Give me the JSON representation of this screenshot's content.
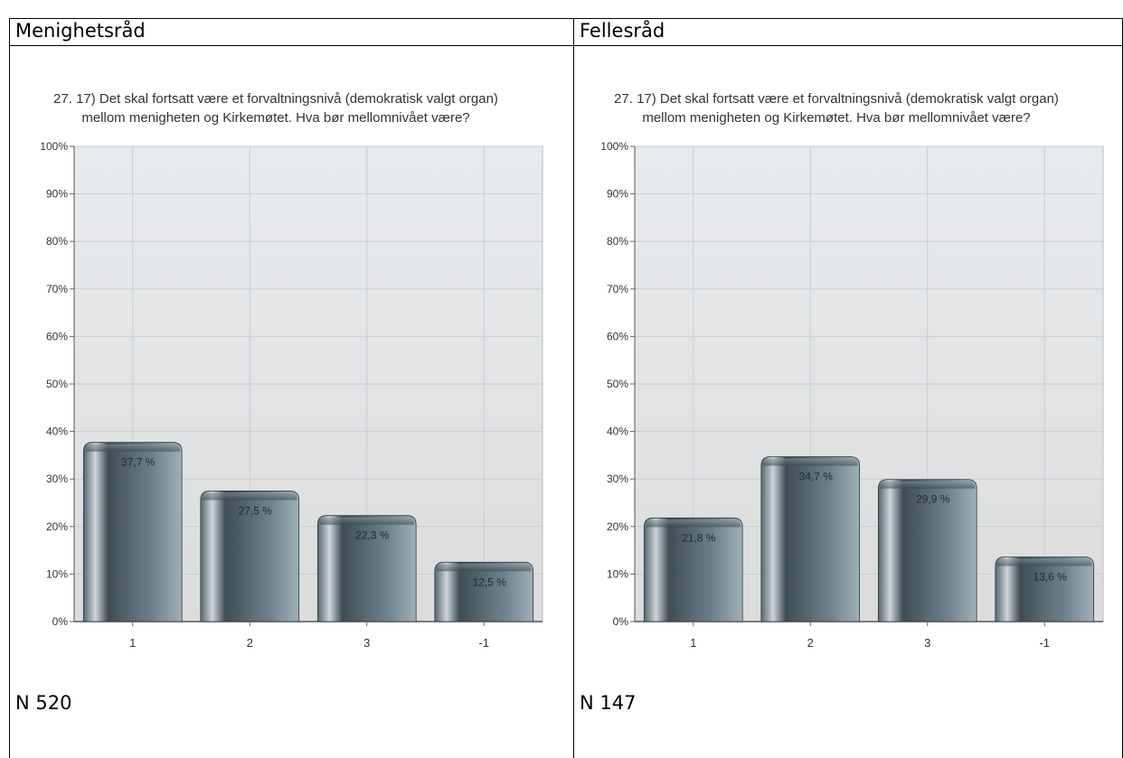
{
  "panels": [
    {
      "header": "Menighetsråd",
      "footer": "N 520",
      "chart_data": {
        "type": "bar",
        "title_lines": [
          "27. 17) Det skal fortsatt være et forvaltningsnivå (demokratisk valgt organ)",
          "mellom menigheten og Kirkemøtet. Hva bør mellomnivået være?"
        ],
        "categories": [
          "1",
          "2",
          "3",
          "-1"
        ],
        "values": [
          37.7,
          27.5,
          22.3,
          12.5
        ],
        "value_labels": [
          "37,7 %",
          "27,5 %",
          "22,3 %",
          "12,5 %"
        ],
        "yticks": [
          "0%",
          "10%",
          "20%",
          "30%",
          "40%",
          "50%",
          "60%",
          "70%",
          "80%",
          "90%",
          "100%"
        ],
        "ylim": [
          0,
          100
        ],
        "grid": true
      }
    },
    {
      "header": "Fellesråd",
      "footer": "N 147",
      "chart_data": {
        "type": "bar",
        "title_lines": [
          "27. 17) Det skal fortsatt være et forvaltningsnivå (demokratisk valgt organ)",
          "mellom menigheten og Kirkemøtet. Hva bør mellomnivået være?"
        ],
        "categories": [
          "1",
          "2",
          "3",
          "-1"
        ],
        "values": [
          21.8,
          34.7,
          29.9,
          13.6
        ],
        "value_labels": [
          "21,8 %",
          "34,7 %",
          "29,9 %",
          "13,6 %"
        ],
        "yticks": [
          "0%",
          "10%",
          "20%",
          "30%",
          "40%",
          "50%",
          "60%",
          "70%",
          "80%",
          "90%",
          "100%"
        ],
        "ylim": [
          0,
          100
        ],
        "grid": true
      }
    }
  ],
  "colors": {
    "bar_dark": "#3e4d55",
    "bar_light": "#9fb0b8",
    "plot_bg_top": "#e8ebee",
    "plot_bg_bottom": "#dcdcdc",
    "gridline": "#c8cdd2"
  }
}
